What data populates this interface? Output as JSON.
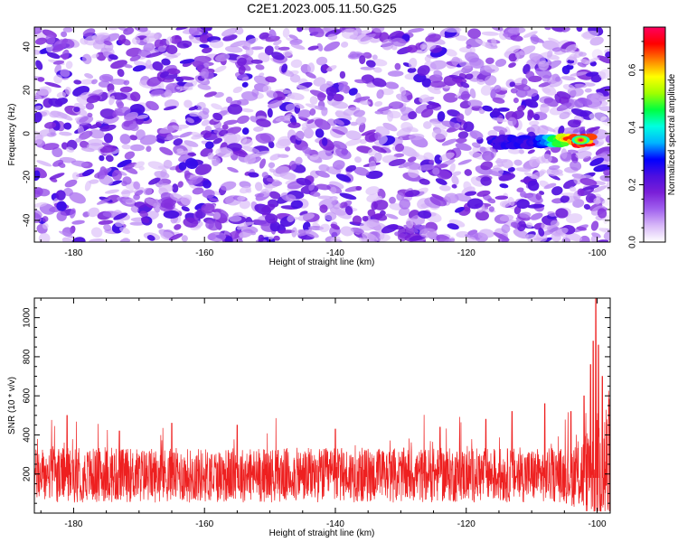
{
  "title": "C2E1.2023.005.11.50.G25",
  "chart_data": [
    {
      "type": "heatmap",
      "xlabel": "Height of straight line (km)",
      "ylabel": "Frequency (Hz)",
      "xlim": [
        -186,
        -98
      ],
      "ylim": [
        -50,
        49
      ],
      "x_ticks": [
        -180,
        -160,
        -140,
        -120,
        -100
      ],
      "y_ticks": [
        -40,
        -20,
        0,
        20,
        40
      ],
      "grid": false,
      "colorbar": {
        "label": "Normalized spectral amplitude",
        "range": [
          0,
          0.75
        ],
        "ticks": [
          0.0,
          0.2,
          0.4,
          0.6
        ],
        "colormap": [
          "#ffffff",
          "#d8b8f8",
          "#a060ee",
          "#7a1fd8",
          "#4c0fe0",
          "#0000ff",
          "#00b4ff",
          "#00ffe0",
          "#00ff40",
          "#a0ff00",
          "#ffff00",
          "#ff8000",
          "#ff0000",
          "#ff0060"
        ]
      },
      "features": {
        "background_noise_amplitude": [
          0.05,
          0.25
        ],
        "signal_trace": {
          "x_start": -116,
          "x_end": -101,
          "frequency_start": -4,
          "frequency_end": -3,
          "peak_amplitude": 0.75,
          "peak_height": -102.5
        }
      }
    },
    {
      "type": "line",
      "xlabel": "Height of straight line (km)",
      "ylabel": "SNR (10 * v/v)",
      "xlim": [
        -186,
        -98
      ],
      "ylim": [
        0,
        1100
      ],
      "x_ticks": [
        -180,
        -160,
        -140,
        -120,
        -100
      ],
      "y_ticks": [
        200,
        400,
        600,
        800,
        1000
      ],
      "grid": false,
      "series": [
        {
          "color": "#ee2020",
          "baseline": 180,
          "noise_amplitude": 140,
          "spike_points": [
            {
              "x": -181,
              "y": 500
            },
            {
              "x": -173,
              "y": 420
            },
            {
              "x": -165,
              "y": 460
            },
            {
              "x": -155,
              "y": 450
            },
            {
              "x": -140,
              "y": 430
            },
            {
              "x": -124,
              "y": 440
            },
            {
              "x": -117,
              "y": 480
            },
            {
              "x": -113,
              "y": 520
            },
            {
              "x": -108,
              "y": 560
            },
            {
              "x": -104,
              "y": 520
            },
            {
              "x": -102,
              "y": 600
            },
            {
              "x": -101,
              "y": 760
            },
            {
              "x": -100.6,
              "y": 880
            },
            {
              "x": -100.2,
              "y": 1100
            },
            {
              "x": -99.8,
              "y": 860
            },
            {
              "x": -99.2,
              "y": 700
            }
          ]
        }
      ]
    }
  ]
}
